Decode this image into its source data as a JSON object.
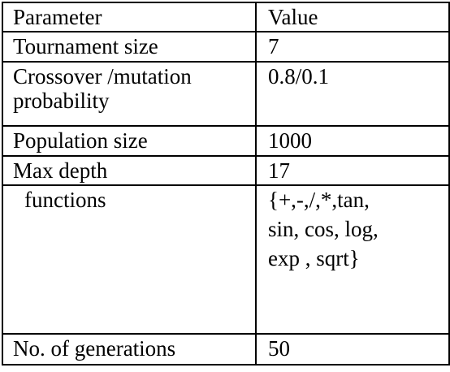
{
  "table": {
    "headers": [
      "Parameter",
      "Value"
    ],
    "rows": [
      {
        "parameter": [
          "Tournament size"
        ],
        "value": [
          "7"
        ]
      },
      {
        "parameter": [
          "Crossover /mutation",
          "probability"
        ],
        "value": [
          "0.8/0.1"
        ]
      },
      {
        "parameter": [
          "Population size"
        ],
        "value": [
          "1000"
        ]
      },
      {
        "parameter": [
          "Max depth"
        ],
        "value": [
          "17"
        ]
      },
      {
        "parameter": [
          "functions"
        ],
        "value": [
          "{+,-,/,*,tan,",
          "sin, cos, log,",
          "exp , sqrt}"
        ]
      },
      {
        "parameter": [
          "No. of generations"
        ],
        "value": [
          "50"
        ]
      }
    ]
  }
}
